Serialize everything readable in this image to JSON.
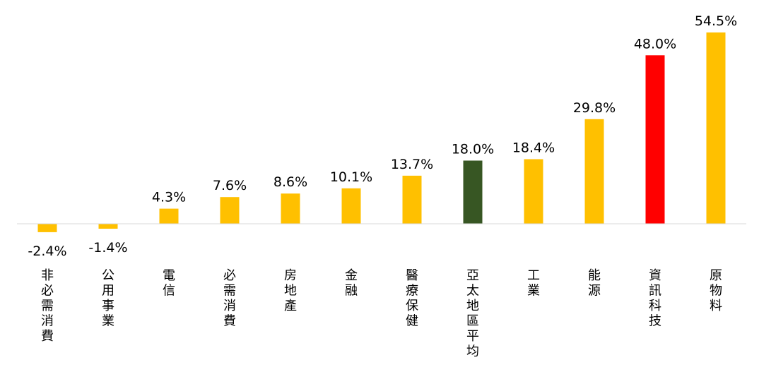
{
  "chart_data": {
    "type": "bar",
    "title": "",
    "xlabel": "",
    "ylabel": "",
    "categories": [
      "非必需消費",
      "公用事業",
      "電信",
      "必需消費",
      "房地產",
      "金融",
      "醫療保健",
      "亞太地區平均",
      "工業",
      "能源",
      "資訊科技",
      "原物料"
    ],
    "values": [
      -2.4,
      -1.4,
      4.3,
      7.6,
      8.6,
      10.1,
      13.7,
      18.0,
      18.4,
      29.8,
      48.0,
      54.5
    ],
    "value_labels": [
      "-2.4%",
      "-1.4%",
      "4.3%",
      "7.6%",
      "8.6%",
      "10.1%",
      "13.7%",
      "18.0%",
      "18.4%",
      "29.8%",
      "48.0%",
      "54.5%"
    ],
    "colors": [
      "#FFC000",
      "#FFC000",
      "#FFC000",
      "#FFC000",
      "#FFC000",
      "#FFC000",
      "#FFC000",
      "#375623",
      "#FFC000",
      "#FFC000",
      "#FF0000",
      "#FFC000"
    ],
    "ylim": [
      -2.4,
      54.5
    ],
    "grid": false,
    "legend": "none",
    "baseline_color": "#D9D9D9"
  }
}
